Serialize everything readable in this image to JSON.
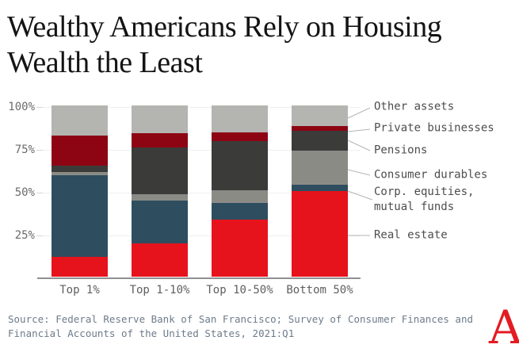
{
  "header": {
    "title_line1": "Wealthy Americans Rely on Housing",
    "title_line2": "Wealth the Least"
  },
  "chart_data": {
    "type": "bar",
    "subtype": "stacked-100-percent",
    "title": "Wealthy Americans Rely on Housing Wealth the Least",
    "categories": [
      "Top 1%",
      "Top 1-10%",
      "Top 10-50%",
      "Bottom 50%"
    ],
    "series": [
      {
        "name": "Real estate",
        "color": "#e6131c",
        "values": [
          11.5,
          19.5,
          33.5,
          50
        ]
      },
      {
        "name": "Corp. equities, mutual funds",
        "color": "#2e4e5f",
        "values": [
          48,
          25,
          9.5,
          3.5
        ]
      },
      {
        "name": "Consumer durables",
        "color": "#8b8b86",
        "values": [
          1.5,
          3.5,
          7.5,
          20
        ]
      },
      {
        "name": "Pensions",
        "color": "#3b3b3a",
        "values": [
          4,
          27.5,
          28.5,
          11.5
        ]
      },
      {
        "name": "Private businesses",
        "color": "#8d0513",
        "values": [
          17.5,
          8.5,
          5.5,
          3
        ]
      },
      {
        "name": "Other assets",
        "color": "#b4b4b0",
        "values": [
          17.5,
          16,
          15.5,
          12
        ]
      }
    ],
    "xlabel": "",
    "ylabel": "",
    "ylim": [
      0,
      100
    ],
    "yticks": [
      {
        "label": "100%",
        "value": 100
      },
      {
        "label": "75%",
        "value": 75
      },
      {
        "label": "50%",
        "value": 50
      },
      {
        "label": "25%",
        "value": 25
      }
    ],
    "grid": true,
    "legend_position": "right-callouts"
  },
  "legend": {
    "items": [
      {
        "label": "Other assets"
      },
      {
        "label": "Private businesses"
      },
      {
        "label": "Pensions"
      },
      {
        "label": "Consumer durables"
      },
      {
        "label": "Corp. equities,\nmutual funds"
      },
      {
        "label": "Real estate"
      }
    ]
  },
  "footer": {
    "source_text": "Source: Federal Reserve Bank of San Francisco; Survey of Consumer Finances and\nFinancial Accounts of the United States, 2021:Q1",
    "logo_text": "A"
  },
  "colors": {
    "accent_red": "#e6131c",
    "dark_red": "#8d0513",
    "slate_blue": "#2e4e5f",
    "dark_gray": "#3b3b3a",
    "mid_gray": "#8b8b86",
    "light_gray": "#b4b4b0",
    "logo_red": "#e31b23",
    "source_text": "#6e7b8a"
  }
}
